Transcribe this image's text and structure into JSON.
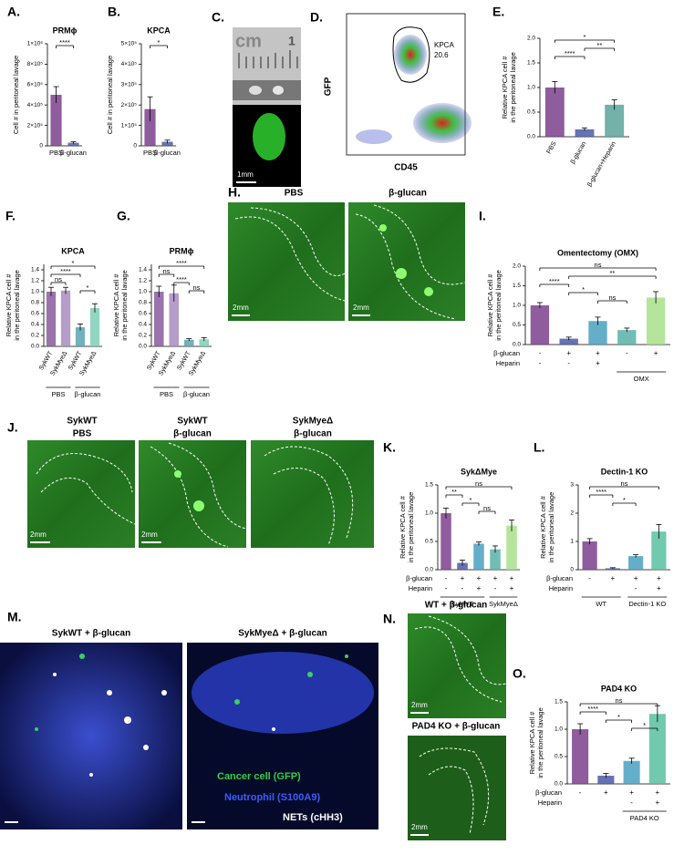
{
  "chart_data": [
    {
      "type": "bar",
      "panel": "A.",
      "title": "PRMϕ",
      "ylabel": "Cell # in peritoneal lavage",
      "categories": [
        "PBS",
        "β-glucan"
      ],
      "values": [
        500000,
        30000
      ],
      "errors": [
        80000,
        10000
      ],
      "colors": [
        "#7b3f8c",
        "#4b5ba6"
      ],
      "ylim": [
        0,
        1000000
      ],
      "yticks": [
        0,
        {
          "value": 200000,
          "label": "2×10⁵"
        },
        {
          "value": 400000,
          "label": "4×10⁵"
        },
        {
          "value": 600000,
          "label": "6×10⁵"
        },
        {
          "value": 800000,
          "label": "8×10⁵"
        },
        {
          "value": 1000000,
          "label": "1×10⁶"
        }
      ],
      "significance": [
        {
          "from": 0,
          "to": 1,
          "label": "****"
        }
      ]
    },
    {
      "type": "bar",
      "panel": "B.",
      "title": "KPCA",
      "ylabel": "Cell # in peritoneal lavage",
      "categories": [
        "PBS",
        "β-glucan"
      ],
      "values": [
        180000,
        20000
      ],
      "errors": [
        60000,
        8000
      ],
      "colors": [
        "#7b3f8c",
        "#4b5ba6"
      ],
      "ylim": [
        0,
        500000
      ],
      "yticks": [
        0,
        {
          "value": 100000,
          "label": "1×10⁵"
        },
        {
          "value": 200000,
          "label": "2×10⁵"
        },
        {
          "value": 300000,
          "label": "3×10⁵"
        },
        {
          "value": 400000,
          "label": "4×10⁵"
        },
        {
          "value": 500000,
          "label": "5×10⁵"
        }
      ],
      "significance": [
        {
          "from": 0,
          "to": 1,
          "label": "*"
        }
      ]
    },
    {
      "type": "bar",
      "panel": "E.",
      "ylabel": [
        "Relative KPCA cell #",
        "in the peritoneal lavage"
      ],
      "categories": [
        "PBS",
        "β-glucan",
        "β-glucan+Heparin"
      ],
      "rotate": true,
      "values": [
        1.0,
        0.15,
        0.65
      ],
      "errors": [
        0.12,
        0.03,
        0.1
      ],
      "colors": [
        "#7b3f8c",
        "#4b5ba6",
        "#5aa39a"
      ],
      "ylim": [
        0,
        2
      ],
      "yticks": [
        {
          "value": 0,
          "label": "0.0"
        },
        0.5,
        {
          "value": 1,
          "label": "1.0"
        },
        1.5,
        {
          "value": 2,
          "label": "2.0"
        }
      ],
      "significance": [
        {
          "from": 0,
          "to": 2,
          "label": "*"
        },
        {
          "from": 1,
          "to": 2,
          "label": "**"
        },
        {
          "from": 0,
          "to": 1,
          "label": "****"
        }
      ]
    },
    {
      "type": "bar",
      "panel": "F.",
      "title": "KPCA",
      "ylabel": [
        "Relative KPCA cell #",
        "in the peritoneal lavage"
      ],
      "categories": [
        "SykWT",
        "SykMyeΔ",
        "SykWT",
        "SykMyeΔ"
      ],
      "rotate": true,
      "values": [
        1.0,
        1.02,
        0.35,
        0.7
      ],
      "errors": [
        0.08,
        0.06,
        0.06,
        0.08
      ],
      "colors": [
        "#8a5a9c",
        "#a98bc0",
        "#5aa3b0",
        "#7ccfb6"
      ],
      "ylim": [
        0,
        1.5
      ],
      "yticks": [
        {
          "value": 0,
          "label": "0.0"
        },
        0.2,
        0.4,
        0.6,
        0.8,
        {
          "value": 1,
          "label": "1.0"
        },
        1.2,
        1.4
      ],
      "groups": [
        {
          "label": "PBS",
          "from": 0,
          "to": 1
        },
        {
          "label": "β-glucan",
          "from": 2,
          "to": 3
        }
      ],
      "significance": [
        {
          "from": 0,
          "to": 3,
          "label": "*"
        },
        {
          "from": 0,
          "to": 2,
          "label": "****"
        },
        {
          "from": 0,
          "to": 1,
          "label": "ns"
        },
        {
          "from": 2,
          "to": 3,
          "label": "*"
        }
      ]
    },
    {
      "type": "bar",
      "panel": "G.",
      "title": "PRMϕ",
      "ylabel": [
        "Relative KPCA cell #",
        "in the peritoneal lavage"
      ],
      "categories": [
        "SykWT",
        "SykMyeΔ",
        "SykWT",
        "SykMyeΔ"
      ],
      "rotate": true,
      "values": [
        1.0,
        0.97,
        0.12,
        0.13
      ],
      "errors": [
        0.1,
        0.15,
        0.02,
        0.03
      ],
      "colors": [
        "#8a5a9c",
        "#a98bc0",
        "#5aa3b0",
        "#7ccfb6"
      ],
      "ylim": [
        0,
        1.5
      ],
      "yticks": [
        {
          "value": 0,
          "label": "0.0"
        },
        0.2,
        0.4,
        0.6,
        0.8,
        {
          "value": 1,
          "label": "1.0"
        },
        1.2,
        1.4
      ],
      "groups": [
        {
          "label": "PBS",
          "from": 0,
          "to": 1
        },
        {
          "label": "β-glucan",
          "from": 2,
          "to": 3
        }
      ],
      "significance": [
        {
          "from": 0,
          "to": 3,
          "label": "****"
        },
        {
          "from": 0,
          "to": 1,
          "label": "ns"
        },
        {
          "from": 1,
          "to": 2,
          "label": "****"
        },
        {
          "from": 2,
          "to": 3,
          "label": "ns"
        }
      ]
    },
    {
      "type": "bar",
      "panel": "I.",
      "title": "Omentectomy (OMX)",
      "ylabel": [
        "Relative KPCA cell #",
        "in the peritoneal lavage"
      ],
      "values": [
        1.0,
        0.15,
        0.6,
        0.37,
        1.2
      ],
      "errors": [
        0.07,
        0.04,
        0.1,
        0.05,
        0.15
      ],
      "colors": [
        "#7b3f8c",
        "#4b5ba6",
        "#4aa0c0",
        "#58b2a8",
        "#a8e08c"
      ],
      "ylim": [
        0,
        2
      ],
      "yticks": [
        {
          "value": 0,
          "label": "0.0"
        },
        0.5,
        {
          "value": 1,
          "label": "1.0"
        },
        1.5,
        {
          "value": 2,
          "label": "2.0"
        }
      ],
      "conditions": [
        {
          "name": "β-glucan",
          "values": [
            "-",
            "+",
            "+",
            "-",
            "+"
          ]
        },
        {
          "name": "Heparin",
          "values": [
            "-",
            "-",
            "+",
            null,
            null
          ]
        }
      ],
      "groups": [
        {
          "label": "OMX",
          "from": 3,
          "to": 4
        }
      ],
      "significance": [
        {
          "from": 0,
          "to": 4,
          "label": "ns"
        },
        {
          "from": 1,
          "to": 4,
          "label": "**"
        },
        {
          "from": 0,
          "to": 1,
          "label": "****"
        },
        {
          "from": 1,
          "to": 2,
          "label": "*"
        },
        {
          "from": 2,
          "to": 3,
          "label": "ns"
        }
      ]
    },
    {
      "type": "bar",
      "panel": "K.",
      "title": "SykΔMye",
      "ylabel": [
        "Relative KPCA cell #",
        "in the peritoneal lavage"
      ],
      "values": [
        1.0,
        0.12,
        0.46,
        0.36,
        0.78
      ],
      "errors": [
        0.09,
        0.05,
        0.03,
        0.06,
        0.1
      ],
      "colors": [
        "#7b3f8c",
        "#4b5ba6",
        "#4aa0c0",
        "#58b2a8",
        "#a8e08c"
      ],
      "ylim": [
        0,
        1.5
      ],
      "yticks": [
        {
          "value": 0,
          "label": "0.0"
        },
        0.5,
        {
          "value": 1,
          "label": "1.0"
        },
        1.5
      ],
      "conditions": [
        {
          "name": "β-glucan",
          "values": [
            "-",
            "+",
            "+",
            "+",
            "+"
          ]
        },
        {
          "name": "Heparin",
          "values": [
            "-",
            "-",
            "+",
            "-",
            "+"
          ]
        }
      ],
      "groups": [
        {
          "label": "SykWT",
          "from": 0,
          "to": 2
        },
        {
          "label": "SykMyeΔ",
          "from": 3,
          "to": 4
        }
      ],
      "significance": [
        {
          "from": 0,
          "to": 4,
          "label": "ns"
        },
        {
          "from": 0,
          "to": 1,
          "label": "**"
        },
        {
          "from": 1,
          "to": 2,
          "label": "*"
        },
        {
          "from": 2,
          "to": 3,
          "label": "ns"
        }
      ]
    },
    {
      "type": "bar",
      "panel": "L.",
      "title": "Dectin-1 KO",
      "ylabel": [
        "Relative KPCA cell #",
        "in the peritoneal lavage"
      ],
      "values": [
        1.0,
        0.05,
        0.48,
        1.35
      ],
      "errors": [
        0.1,
        0.02,
        0.05,
        0.25
      ],
      "colors": [
        "#7b3f8c",
        "#4b5ba6",
        "#4aa0c0",
        "#58c0a0"
      ],
      "ylim": [
        0,
        3
      ],
      "yticks": [
        0,
        1,
        2,
        3
      ],
      "conditions": [
        {
          "name": "β-glucan",
          "values": [
            "-",
            "+",
            "+",
            "+"
          ]
        },
        {
          "name": "Heparin",
          "values": [
            null,
            null,
            "-",
            "+"
          ]
        }
      ],
      "groups": [
        {
          "label": "WT",
          "from": 0,
          "to": 1
        },
        {
          "label": "Dectin-1 KO",
          "from": 2,
          "to": 3
        }
      ],
      "significance": [
        {
          "from": 0,
          "to": 3,
          "label": "ns"
        },
        {
          "from": 0,
          "to": 1,
          "label": "****"
        },
        {
          "from": 1,
          "to": 2,
          "label": "*"
        }
      ]
    },
    {
      "type": "bar",
      "panel": "O.",
      "title": "PAD4 KO",
      "ylabel": [
        "Relative KPCA cell #",
        "in the peritoneal lavage"
      ],
      "values": [
        1.0,
        0.15,
        0.42,
        1.28
      ],
      "errors": [
        0.1,
        0.04,
        0.05,
        0.15
      ],
      "colors": [
        "#7b3f8c",
        "#4b5ba6",
        "#4aa0c0",
        "#58c0a0"
      ],
      "ylim": [
        0,
        1.5
      ],
      "yticks": [
        {
          "value": 0,
          "label": "0.0"
        },
        0.5,
        {
          "value": 1,
          "label": "1.0"
        },
        1.5
      ],
      "conditions": [
        {
          "name": "β-glucan",
          "values": [
            "-",
            "+",
            "+",
            "+"
          ]
        },
        {
          "name": "Heparin",
          "values": [
            null,
            null,
            "-",
            "+"
          ]
        }
      ],
      "groups": [
        {
          "label": "PAD4 KO",
          "from": 2,
          "to": 3
        }
      ],
      "significance": [
        {
          "from": 0,
          "to": 3,
          "label": "ns"
        },
        {
          "from": 0,
          "to": 1,
          "label": "****"
        },
        {
          "from": 1,
          "to": 2,
          "label": "*"
        },
        {
          "from": 2,
          "to": 3,
          "label": "*"
        }
      ]
    }
  ],
  "image_panels": [
    {
      "panel": "C.",
      "texts": [
        "cm",
        "1",
        "1mm"
      ]
    },
    {
      "panel": "D.",
      "texts": [
        "GFP",
        "CD45",
        "KPCA",
        "20.6"
      ]
    },
    {
      "panel": "H.",
      "texts": [
        "PBS",
        "β-glucan",
        "2mm",
        "2mm"
      ]
    },
    {
      "panel": "J.",
      "texts": [
        "SykWT",
        "PBS",
        "SykWT",
        "β-glucan",
        "SykMyeΔ",
        "β-glucan",
        "2mm",
        "2mm"
      ]
    },
    {
      "panel": "M.",
      "texts": [
        "SykWT + β-glucan",
        "SykMyeΔ + β-glucan",
        "Cancer cell (GFP)",
        "Neutrophil (S100A9)",
        "NETs (cHH3)"
      ]
    },
    {
      "panel": "N.",
      "texts": [
        "WT + β-glucan",
        "PAD4 KO + β-glucan",
        "2mm",
        "2mm"
      ]
    }
  ]
}
